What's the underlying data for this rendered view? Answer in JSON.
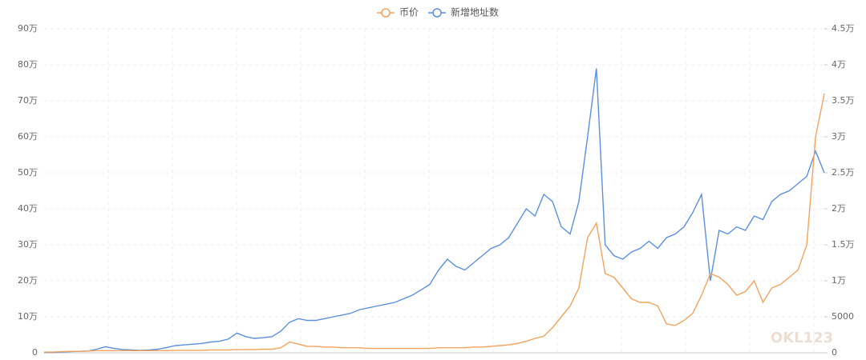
{
  "chart_data": {
    "type": "line",
    "categories": [
      null,
      null,
      null,
      null,
      null,
      null,
      null,
      null,
      null,
      null,
      null,
      null,
      null,
      null,
      null,
      null,
      null,
      null,
      null,
      null,
      null,
      null,
      null,
      null,
      null,
      null,
      null,
      null,
      null,
      null,
      null,
      null,
      null,
      null,
      null,
      null,
      null,
      null,
      null,
      null,
      null,
      null,
      null,
      null,
      null,
      null,
      null,
      null,
      null,
      null,
      null,
      null,
      null,
      null,
      null,
      null,
      null,
      null,
      null,
      null,
      null,
      null,
      null,
      null,
      null,
      null,
      null,
      null,
      null,
      null,
      null,
      null,
      null,
      null,
      null,
      null,
      null,
      null,
      null,
      null,
      null,
      null,
      null,
      null,
      null,
      null,
      null,
      null,
      null,
      null
    ],
    "series": [
      {
        "name": "币价",
        "color": "#f2a45c",
        "axis": "y2",
        "values": [
          100,
          100,
          150,
          200,
          200,
          250,
          300,
          300,
          300,
          300,
          300,
          300,
          300,
          300,
          300,
          350,
          350,
          350,
          350,
          400,
          400,
          400,
          450,
          450,
          450,
          500,
          500,
          700,
          1500,
          1200,
          900,
          900,
          800,
          800,
          700,
          700,
          700,
          600,
          600,
          600,
          600,
          600,
          600,
          600,
          600,
          700,
          700,
          700,
          700,
          800,
          800,
          900,
          1000,
          1100,
          1300,
          1600,
          2000,
          2300,
          3500,
          5000,
          6500,
          9000,
          16000,
          18000,
          11000,
          10500,
          9000,
          7500,
          7000,
          7000,
          6500,
          4000,
          3800,
          4500,
          5500,
          8000,
          11000,
          10500,
          9500,
          8000,
          8500,
          10000,
          7000,
          9000,
          9500,
          10500,
          11500,
          15000,
          30000,
          36000
        ]
      },
      {
        "name": "新增地址数",
        "color": "#5b8fe0",
        "values": [
          1000,
          1000,
          2000,
          3000,
          4000,
          5000,
          10000,
          17000,
          12000,
          9000,
          8000,
          7000,
          8000,
          10000,
          15000,
          20000,
          22000,
          24000,
          26000,
          30000,
          32000,
          38000,
          55000,
          45000,
          40000,
          42000,
          45000,
          60000,
          85000,
          95000,
          90000,
          90000,
          95000,
          100000,
          105000,
          110000,
          120000,
          125000,
          130000,
          135000,
          140000,
          150000,
          160000,
          175000,
          190000,
          230000,
          260000,
          240000,
          230000,
          250000,
          270000,
          290000,
          300000,
          320000,
          360000,
          400000,
          380000,
          440000,
          420000,
          350000,
          330000,
          420000,
          600000,
          790000,
          300000,
          270000,
          260000,
          280000,
          290000,
          310000,
          290000,
          320000,
          330000,
          350000,
          390000,
          440000,
          200000,
          340000,
          330000,
          350000,
          340000,
          380000,
          370000,
          420000,
          440000,
          450000,
          470000,
          490000,
          560000,
          500000
        ]
      }
    ],
    "ylim": [
      0,
      900000
    ],
    "yticks": [
      0,
      {
        "value": 100000,
        "label": "10万"
      },
      {
        "value": 200000,
        "label": "20万"
      },
      {
        "value": 300000,
        "label": "30万"
      },
      {
        "value": 400000,
        "label": "40万"
      },
      {
        "value": 500000,
        "label": "50万"
      },
      {
        "value": 600000,
        "label": "60万"
      },
      {
        "value": 700000,
        "label": "70万"
      },
      {
        "value": 800000,
        "label": "80万"
      },
      {
        "value": 900000,
        "label": "90万"
      }
    ],
    "y2lim": [
      0,
      45000
    ],
    "y2ticks": [
      0,
      5000,
      {
        "value": 10000,
        "label": "1万"
      },
      {
        "value": 15000,
        "label": "1.5万"
      },
      {
        "value": 20000,
        "label": "2万"
      },
      {
        "value": 25000,
        "label": "2.5万"
      },
      {
        "value": 30000,
        "label": "3万"
      },
      {
        "value": 35000,
        "label": "3.5万"
      },
      {
        "value": 40000,
        "label": "4万"
      },
      {
        "value": 45000,
        "label": "4.5万"
      }
    ],
    "grid": true,
    "legend": "top",
    "watermark": "OKL123"
  }
}
